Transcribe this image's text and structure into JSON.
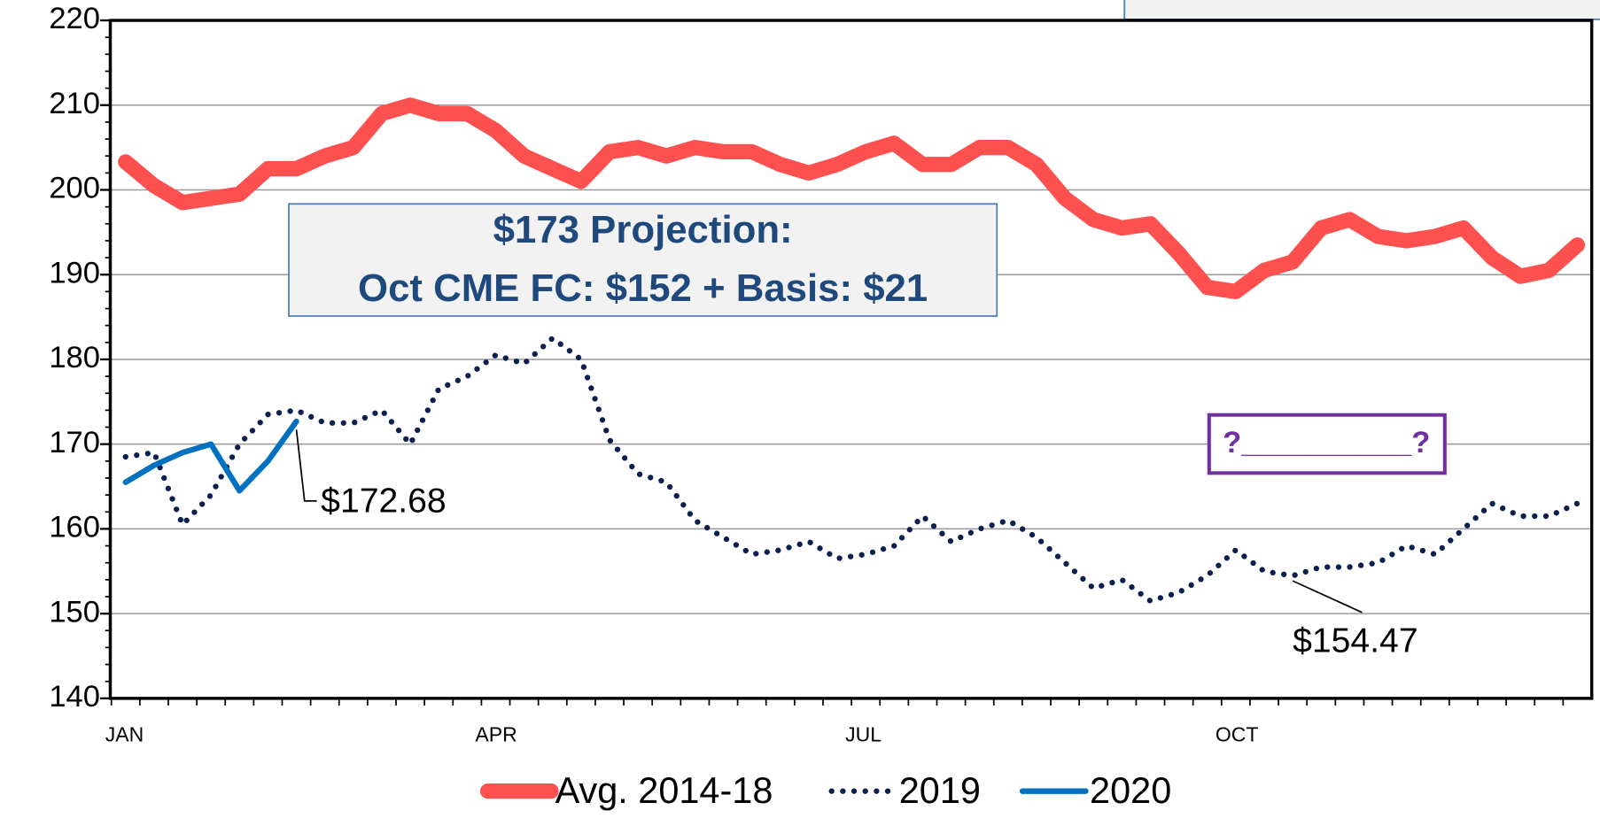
{
  "chart_data": {
    "type": "line",
    "categories": [
      "JAN",
      null,
      null,
      null,
      null,
      null,
      null,
      null,
      null,
      null,
      null,
      null,
      null,
      "APR",
      null,
      null,
      null,
      null,
      null,
      null,
      null,
      null,
      null,
      null,
      null,
      null,
      "JUL",
      null,
      null,
      null,
      null,
      null,
      null,
      null,
      null,
      null,
      null,
      null,
      null,
      "OCT",
      null,
      null,
      null,
      null,
      null,
      null,
      null,
      null,
      null,
      null,
      null,
      null
    ],
    "series": [
      {
        "name": "Avg. 2014-18",
        "color": "#ff5050",
        "style": "solid",
        "values": [
          203.3,
          200.5,
          198.5,
          199,
          199.5,
          202.5,
          202.5,
          204,
          205,
          209,
          210,
          209,
          209,
          207,
          204,
          202.5,
          201,
          204.5,
          205,
          204,
          205,
          204.5,
          204.5,
          203,
          202,
          203,
          204.5,
          205.5,
          203,
          203,
          205,
          205,
          203,
          199,
          196.5,
          195.5,
          196,
          192.5,
          188.5,
          188,
          190.5,
          191.5,
          195.5,
          196.5,
          194.5,
          194,
          194.5,
          195.5,
          192,
          189.8,
          190.5,
          193.5
        ]
      },
      {
        "name": "2019",
        "color": "#0d1f4f",
        "style": "dotted",
        "values": [
          168.5,
          169,
          160.5,
          164,
          170,
          173.5,
          174,
          172.5,
          172.5,
          174,
          170,
          176.5,
          178,
          180.5,
          179.5,
          182.5,
          180,
          170.5,
          166.5,
          165.5,
          161,
          159,
          157,
          157.5,
          158.5,
          156.5,
          157,
          158,
          161.5,
          158.5,
          160,
          161,
          159,
          156,
          153,
          154,
          151.5,
          152.5,
          154.5,
          157.5,
          155,
          154.47,
          155.5,
          155.5,
          156,
          158,
          157,
          160,
          163,
          161.5,
          161.5,
          163
        ]
      },
      {
        "name": "2020",
        "color": "#0070c0",
        "style": "solid",
        "values": [
          165.5,
          167.5,
          169,
          170,
          164.5,
          168,
          172.68,
          null,
          null,
          null,
          null,
          null,
          null,
          null,
          null,
          null,
          null,
          null,
          null,
          null,
          null,
          null,
          null,
          null,
          null,
          null,
          null,
          null,
          null,
          null,
          null,
          null,
          null,
          null,
          null,
          null,
          null,
          null,
          null,
          null,
          null,
          null,
          null,
          null,
          null,
          null,
          null,
          null,
          null,
          null,
          null,
          null
        ]
      }
    ],
    "ylim": [
      140,
      220
    ],
    "yticks": [
      140,
      150,
      160,
      170,
      180,
      190,
      200,
      210,
      220
    ],
    "grid": true,
    "annotations": [
      {
        "text": "$172.68",
        "series": 2,
        "index": 6
      },
      {
        "text": "$154.47",
        "series": 1,
        "index": 41
      }
    ],
    "projection_box": {
      "line1": "$173 Projection:",
      "line2": "Oct CME FC: $152 + Basis: $21"
    },
    "question_box": "?__________?",
    "legend": "bottom"
  }
}
